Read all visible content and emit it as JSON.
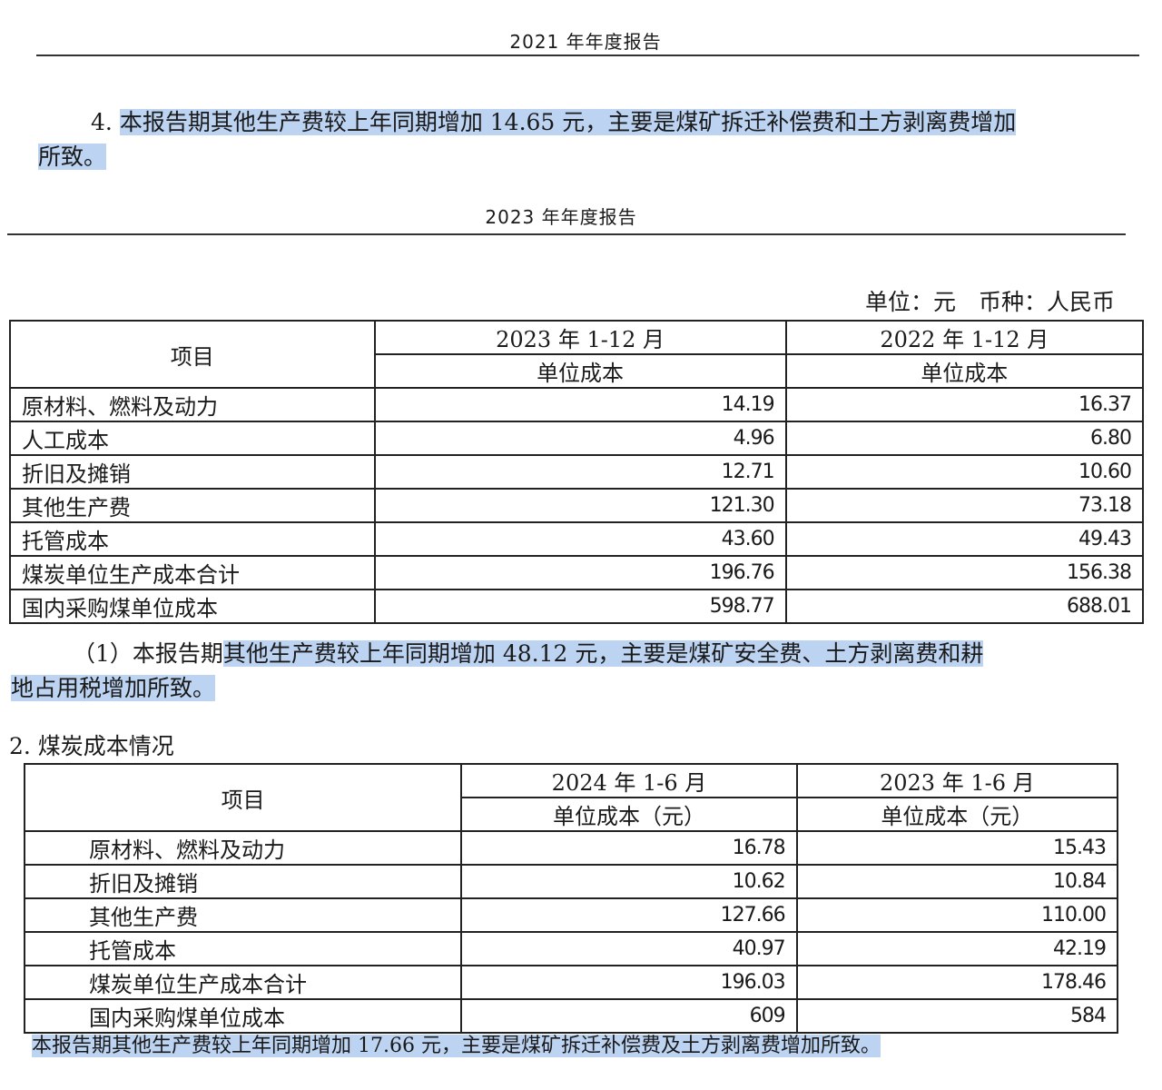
{
  "header_2021": "2021 年年度报告",
  "para_2021": {
    "prefix": "4. ",
    "highlight": "本报告期其他生产费较上年同期增加 14.65 元，主要是煤矿拆迁补偿费和土方剥离费增加",
    "line2": "所致。"
  },
  "header_2023": "2023 年年度报告",
  "unit_note": "单位：元　币种：人民币",
  "table1": {
    "col_item": "项目",
    "col1": "2023 年 1-12 月",
    "col2": "2022 年 1-12 月",
    "sub1": "单位成本",
    "sub2": "单位成本",
    "rows": [
      [
        "原材料、燃料及动力",
        "14.19",
        "16.37"
      ],
      [
        "人工成本",
        "4.96",
        "6.80"
      ],
      [
        "折旧及摊销",
        "12.71",
        "10.60"
      ],
      [
        "其他生产费",
        "121.30",
        "73.18"
      ],
      [
        "托管成本",
        "43.60",
        "49.43"
      ],
      [
        "煤炭单位生产成本合计",
        "196.76",
        "156.38"
      ],
      [
        "国内采购煤单位成本",
        "598.77",
        "688.01"
      ]
    ]
  },
  "para_2023": {
    "prefix": "（1）本报告期",
    "highlight1": "其他生产费较上年同期增加 48.12 元，主要是煤矿安全费、土方剥离费和耕",
    "line2": "地占用税增加所致。"
  },
  "section2_title": "2. 煤炭成本情况",
  "table2": {
    "col_item": "项目",
    "col1": "2024 年 1-6 月",
    "col2": "2023 年 1-6 月",
    "sub1": "单位成本（元）",
    "sub2": "单位成本（元）",
    "rows": [
      [
        "原材料、燃料及动力",
        "16.78",
        "15.43"
      ],
      [
        "折旧及摊销",
        "10.62",
        "10.84"
      ],
      [
        "其他生产费",
        "127.66",
        "110.00"
      ],
      [
        "托管成本",
        "40.97",
        "42.19"
      ],
      [
        "煤炭单位生产成本合计",
        "196.03",
        "178.46"
      ],
      [
        "国内采购煤单位成本",
        "609",
        "584"
      ]
    ]
  },
  "para_2024": "本报告期其他生产费较上年同期增加 17.66 元，主要是煤矿拆迁补偿费及土方剥离费增加所致。",
  "colors": {
    "highlight": "#bcd3f2"
  }
}
